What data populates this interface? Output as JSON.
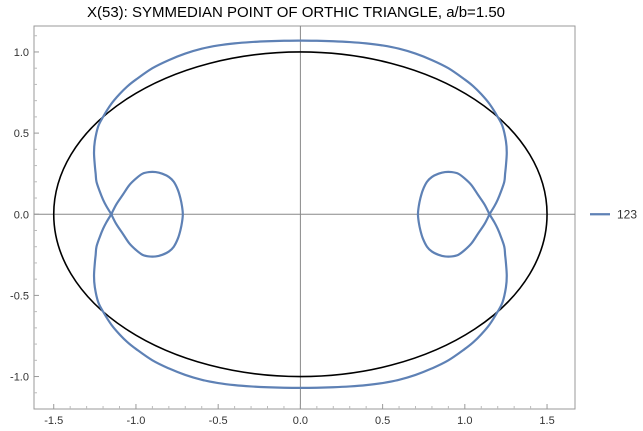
{
  "chart_data": {
    "type": "line",
    "title": "X(53): SYMMEDIAN POINT OF ORTHIC TRIANGLE, a/b=1.50",
    "xlabel": "",
    "ylabel": "",
    "xlim": [
      -1.62,
      1.67
    ],
    "ylim": [
      -1.2,
      1.16
    ],
    "x_ticks": [
      -1.5,
      -1.0,
      -0.5,
      0.0,
      0.5,
      1.0,
      1.5
    ],
    "x_tick_labels": [
      "-1.5",
      "-1.0",
      "-0.5",
      "0.0",
      "0.5",
      "1.0",
      "1.5"
    ],
    "y_ticks": [
      -1.0,
      -0.5,
      0.0,
      0.5,
      1.0
    ],
    "y_tick_labels": [
      "-1.0",
      "-0.5",
      "0.0",
      "0.5",
      "1.0"
    ],
    "grid": false,
    "axes_through_origin": true,
    "legend": {
      "position": "right",
      "entries": [
        "123"
      ]
    },
    "series": [
      {
        "name": "123",
        "color": "#5e81b5",
        "x": [
          0.0,
          0.1,
          0.2,
          0.3,
          0.4,
          0.5,
          0.6,
          0.7,
          0.8,
          0.9,
          1.0,
          1.05,
          1.1,
          1.15,
          1.2,
          1.23,
          1.25,
          1.255,
          1.25,
          1.245,
          1.24,
          1.22,
          1.2,
          1.18,
          1.15,
          1.15,
          1.18,
          1.2,
          1.22,
          1.24,
          1.245,
          1.25,
          1.255,
          1.25,
          1.23,
          1.2,
          1.15,
          1.1,
          1.05,
          1.0,
          0.9,
          0.8,
          0.7,
          0.6,
          0.5,
          0.4,
          0.3,
          0.2,
          0.1,
          0.0,
          -0.1,
          -0.2,
          -0.3,
          -0.4,
          -0.5,
          -0.6,
          -0.7,
          -0.8,
          -0.9,
          -1.0,
          -1.05,
          -1.1,
          -1.15,
          -1.2,
          -1.23,
          -1.25,
          -1.255,
          -1.25,
          -1.245,
          -1.24,
          -1.22,
          -1.2,
          -1.18,
          -1.15,
          -1.15,
          -1.18,
          -1.2,
          -1.22,
          -1.24,
          -1.245,
          -1.25,
          -1.255,
          -1.25,
          -1.23,
          -1.2,
          -1.15,
          -1.1,
          -1.05,
          -1.0,
          -0.9,
          -0.8,
          -0.7,
          -0.6,
          -0.5,
          -0.4,
          -0.3,
          -0.2,
          -0.1,
          0.0
        ],
        "y": [
          1.07,
          1.069,
          1.066,
          1.061,
          1.053,
          1.04,
          1.02,
          0.99,
          0.95,
          0.9,
          0.83,
          0.79,
          0.74,
          0.68,
          0.6,
          0.54,
          0.45,
          0.38,
          0.3,
          0.25,
          0.2,
          0.14,
          0.09,
          0.05,
          0.0,
          0.0,
          -0.05,
          -0.09,
          -0.14,
          -0.2,
          -0.25,
          -0.3,
          -0.38,
          -0.45,
          -0.54,
          -0.6,
          -0.68,
          -0.74,
          -0.79,
          -0.83,
          -0.9,
          -0.95,
          -0.99,
          -1.02,
          -1.04,
          -1.053,
          -1.061,
          -1.066,
          -1.069,
          -1.07,
          -1.069,
          -1.066,
          -1.061,
          -1.053,
          -1.04,
          -1.02,
          -0.99,
          -0.95,
          -0.9,
          -0.83,
          -0.79,
          -0.74,
          -0.68,
          -0.6,
          -0.54,
          -0.45,
          -0.38,
          -0.3,
          -0.25,
          -0.2,
          -0.14,
          -0.09,
          -0.05,
          0.0,
          0.0,
          0.05,
          0.09,
          0.14,
          0.2,
          0.25,
          0.3,
          0.38,
          0.45,
          0.54,
          0.6,
          0.68,
          0.74,
          0.79,
          0.83,
          0.9,
          0.95,
          0.99,
          1.02,
          1.04,
          1.053,
          1.061,
          1.066,
          1.069,
          1.07
        ]
      },
      {
        "name": "123",
        "color": "#5e81b5",
        "x": [
          1.15,
          1.12,
          1.08,
          1.04,
          1.0,
          0.96,
          0.92,
          0.88,
          0.84,
          0.8,
          0.77,
          0.745,
          0.73,
          0.72,
          0.715,
          0.72,
          0.73,
          0.745,
          0.77,
          0.8,
          0.84,
          0.88,
          0.92,
          0.96,
          1.0,
          1.04,
          1.08,
          1.12,
          1.15
        ],
        "y": [
          0.0,
          0.06,
          0.12,
          0.18,
          0.22,
          0.25,
          0.26,
          0.26,
          0.25,
          0.23,
          0.2,
          0.15,
          0.1,
          0.05,
          0.0,
          -0.05,
          -0.1,
          -0.15,
          -0.2,
          -0.23,
          -0.25,
          -0.26,
          -0.26,
          -0.25,
          -0.22,
          -0.18,
          -0.12,
          -0.06,
          0.0
        ]
      },
      {
        "name": "123",
        "color": "#5e81b5",
        "x": [
          -1.15,
          -1.12,
          -1.08,
          -1.04,
          -1.0,
          -0.96,
          -0.92,
          -0.88,
          -0.84,
          -0.8,
          -0.77,
          -0.745,
          -0.73,
          -0.72,
          -0.715,
          -0.72,
          -0.73,
          -0.745,
          -0.77,
          -0.8,
          -0.84,
          -0.88,
          -0.92,
          -0.96,
          -1.0,
          -1.04,
          -1.08,
          -1.12,
          -1.15
        ],
        "y": [
          0.0,
          0.06,
          0.12,
          0.18,
          0.22,
          0.25,
          0.26,
          0.26,
          0.25,
          0.23,
          0.2,
          0.15,
          0.1,
          0.05,
          0.0,
          -0.05,
          -0.1,
          -0.15,
          -0.2,
          -0.23,
          -0.25,
          -0.26,
          -0.26,
          -0.25,
          -0.22,
          -0.18,
          -0.12,
          -0.06,
          0.0
        ]
      }
    ],
    "reference_ellipse": {
      "center": [
        0,
        0
      ],
      "semi_axis_x": 1.5,
      "semi_axis_y": 1.0,
      "color": "#000000"
    }
  }
}
